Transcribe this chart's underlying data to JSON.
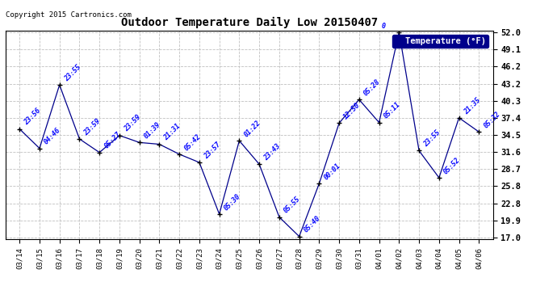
{
  "title": "Outdoor Temperature Daily Low 20150407",
  "copyright": "Copyright 2015 Cartronics.com",
  "legend_label": "Temperature (°F)",
  "background_color": "#ffffff",
  "plot_bg_color": "#ffffff",
  "grid_color": "#c0c0c0",
  "line_color": "#00008B",
  "marker_color": "#000000",
  "dates": [
    "03/14",
    "03/15",
    "03/16",
    "03/17",
    "03/18",
    "03/19",
    "03/20",
    "03/21",
    "03/22",
    "03/23",
    "03/24",
    "03/25",
    "03/26",
    "03/27",
    "03/28",
    "03/29",
    "03/30",
    "03/31",
    "04/01",
    "04/02",
    "04/03",
    "04/04",
    "04/05",
    "04/06"
  ],
  "values": [
    35.5,
    32.2,
    43.0,
    33.8,
    31.5,
    34.4,
    33.2,
    32.9,
    31.2,
    29.8,
    21.0,
    33.5,
    29.5,
    20.5,
    17.2,
    26.2,
    36.5,
    40.5,
    36.6,
    52.0,
    31.8,
    27.2,
    37.4,
    35.0
  ],
  "annotations": [
    "23:56",
    "04:46",
    "23:55",
    "23:59",
    "05:27",
    "23:59",
    "01:39",
    "21:31",
    "05:42",
    "23:57",
    "05:30",
    "01:22",
    "23:43",
    "05:55",
    "05:40",
    "00:01",
    "12:50",
    "05:28",
    "05:11",
    "0",
    "23:55",
    "05:52",
    "21:35",
    "05:32"
  ],
  "ylim_min": 17.0,
  "ylim_max": 52.0,
  "yticks": [
    17.0,
    19.9,
    22.8,
    25.8,
    28.7,
    31.6,
    34.5,
    37.4,
    40.3,
    43.2,
    46.2,
    49.1,
    52.0
  ]
}
